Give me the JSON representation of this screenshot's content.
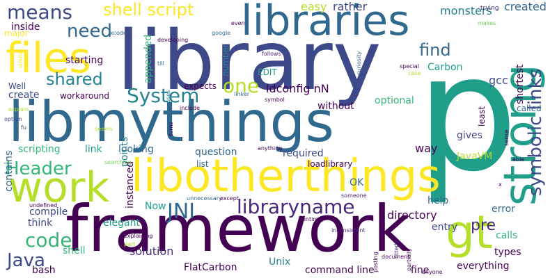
{
  "palette": {
    "dark_purple": "#440154",
    "indigo": "#482878",
    "blue": "#3e4989",
    "steel": "#31688e",
    "teal": "#26828e",
    "sea": "#1f9e89",
    "green": "#35b779",
    "lime": "#6ece58",
    "yellow_green": "#b5de2b",
    "yellow": "#fde725"
  },
  "words": [
    {
      "text": "p"
    },
    {
      "text": "library"
    },
    {
      "text": "libmythings"
    },
    {
      "text": "framework"
    },
    {
      "text": "libotherthings"
    },
    {
      "text": "libraries"
    },
    {
      "text": "strong"
    },
    {
      "text": "files"
    },
    {
      "text": "work"
    },
    {
      "text": "gt"
    },
    {
      "text": "symbolic links"
    },
    {
      "text": "means"
    },
    {
      "text": "shell script"
    },
    {
      "text": "need"
    },
    {
      "text": "find"
    },
    {
      "text": "System"
    },
    {
      "text": "shared"
    },
    {
      "text": "one"
    },
    {
      "text": "ldconfig nN"
    },
    {
      "text": "Header"
    },
    {
      "text": "JNI"
    },
    {
      "text": "libraryname"
    },
    {
      "text": "pre"
    },
    {
      "text": "code"
    },
    {
      "text": "Java"
    },
    {
      "text": "easy"
    },
    {
      "text": "rather"
    },
    {
      "text": "monsters"
    },
    {
      "text": "created"
    },
    {
      "text": "inside"
    },
    {
      "text": "major"
    },
    {
      "text": "starting"
    },
    {
      "text": "appended"
    },
    {
      "text": "number"
    },
    {
      "text": "Carbon"
    },
    {
      "text": "EDIT"
    },
    {
      "text": "shortest"
    },
    {
      "text": "gcc"
    },
    {
      "text": "Well"
    },
    {
      "text": "create"
    },
    {
      "text": "workaround"
    },
    {
      "text": "expects"
    },
    {
      "text": "optional"
    },
    {
      "text": "without"
    },
    {
      "text": "least"
    },
    {
      "text": "called"
    },
    {
      "text": "scripting"
    },
    {
      "text": "link"
    },
    {
      "text": "looking"
    },
    {
      "text": "question"
    },
    {
      "text": "required"
    },
    {
      "text": "way"
    },
    {
      "text": "gives"
    },
    {
      "text": "JavaVM"
    },
    {
      "text": "list"
    },
    {
      "text": "loadlibrary"
    },
    {
      "text": "points"
    },
    {
      "text": "OK"
    },
    {
      "text": "contains"
    },
    {
      "text": "compile"
    },
    {
      "text": "think"
    },
    {
      "text": "elegant"
    },
    {
      "text": "Now"
    },
    {
      "text": "directory"
    },
    {
      "text": "help"
    },
    {
      "text": "error"
    },
    {
      "text": "instanced"
    },
    {
      "text": "entry"
    },
    {
      "text": "calls"
    },
    {
      "text": "types"
    },
    {
      "text": "solution"
    },
    {
      "text": "shell"
    },
    {
      "text": "bash"
    },
    {
      "text": "FlatCarbon"
    },
    {
      "text": "Unix"
    },
    {
      "text": "command line"
    },
    {
      "text": "fine"
    },
    {
      "text": "everything"
    },
    {
      "text": "trying"
    },
    {
      "text": "makes"
    },
    {
      "text": "even"
    },
    {
      "text": "google"
    },
    {
      "text": "developing"
    },
    {
      "text": "xcode"
    },
    {
      "text": "similar"
    },
    {
      "text": "till"
    },
    {
      "text": "follows"
    },
    {
      "text": "curiosity"
    },
    {
      "text": "special"
    },
    {
      "text": "case"
    },
    {
      "text": "uses"
    },
    {
      "text": "include"
    },
    {
      "text": "explain"
    },
    {
      "text": "option"
    },
    {
      "text": "fu"
    },
    {
      "text": "seems"
    },
    {
      "text": "linker"
    },
    {
      "text": "symbol"
    },
    {
      "text": "turns"
    },
    {
      "text": "sense"
    },
    {
      "text": "able"
    },
    {
      "text": "searching"
    },
    {
      "text": "anything"
    },
    {
      "text": "undefined"
    },
    {
      "text": "unnecessary"
    },
    {
      "text": "except"
    },
    {
      "text": "someone"
    },
    {
      "text": "x"
    },
    {
      "text": "entirely"
    },
    {
      "text": "inconsistent"
    },
    {
      "text": "explaining"
    },
    {
      "text": "part"
    },
    {
      "text": "posting"
    },
    {
      "text": "utterly"
    },
    {
      "text": "partially"
    },
    {
      "text": "document"
    },
    {
      "text": "anyone"
    }
  ]
}
